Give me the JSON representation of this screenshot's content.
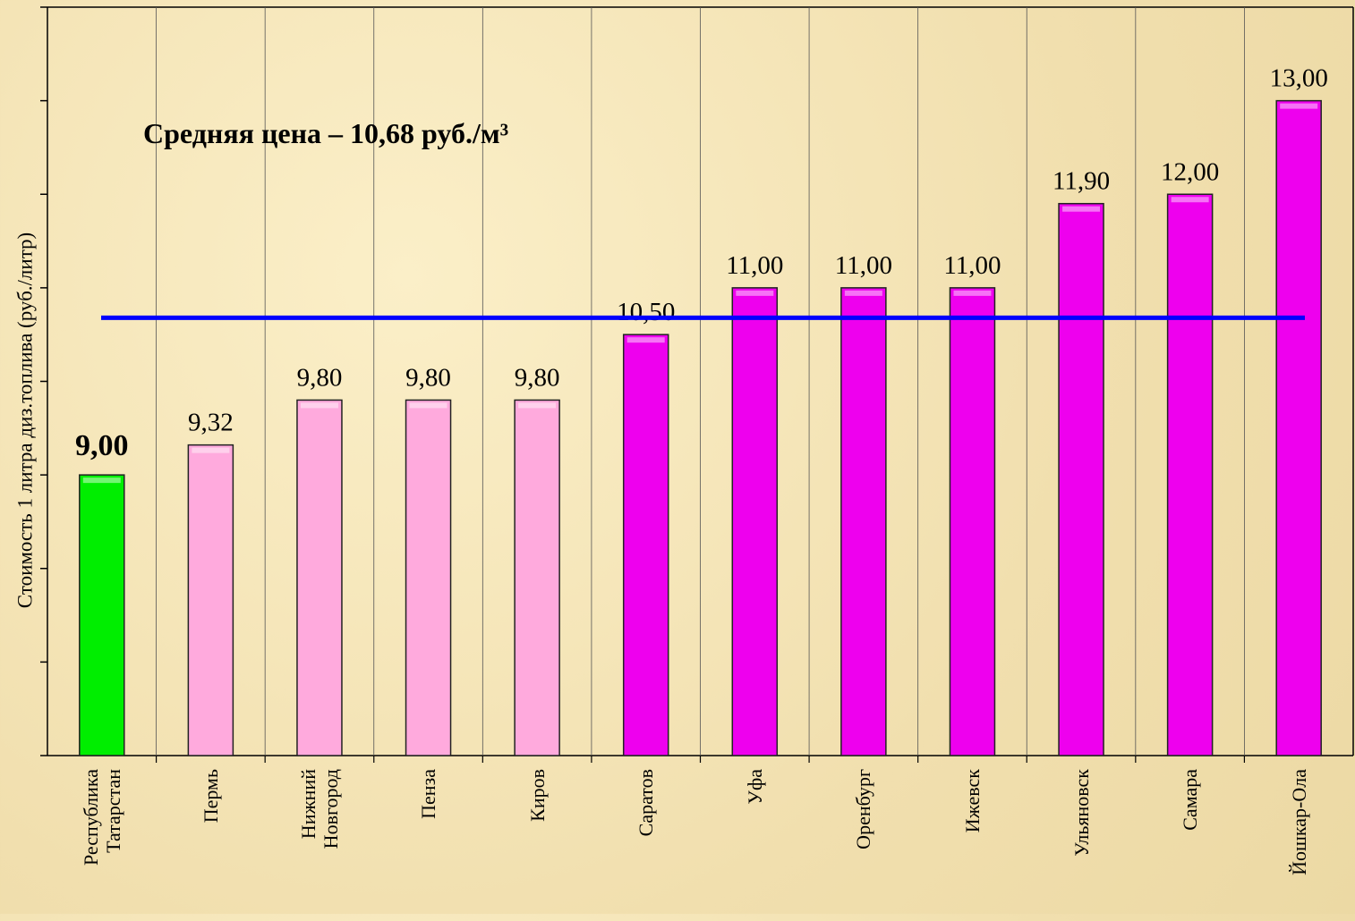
{
  "chart_data": {
    "type": "bar",
    "y_label": "Стоимость 1 литра диз.топлива  (руб./литр)",
    "annotation": "Средняя цена – 10,68 руб./м³",
    "average": 10.68,
    "average_color": "#0000ff",
    "categories": [
      "Республика Татарстан",
      "Пермь",
      "Нижний Новгород",
      "Пенза",
      "Киров",
      "Саратов",
      "Уфа",
      "Оренбург",
      "Ижевск",
      "Ульяновск",
      "Самара",
      "Йошкар-Ола"
    ],
    "values": [
      9.0,
      9.32,
      9.8,
      9.8,
      9.8,
      10.5,
      11.0,
      11.0,
      11.0,
      11.9,
      12.0,
      13.0
    ],
    "value_labels": [
      "9,00",
      "9,32",
      "9,80",
      "9,80",
      "9,80",
      "10,50",
      "11,00",
      "11,00",
      "11,00",
      "11,90",
      "12,00",
      "13,00"
    ],
    "colors": [
      "#00ee00",
      "#ffaadd",
      "#ffaadd",
      "#ffaadd",
      "#ffaadd",
      "#ee00ee",
      "#ee00ee",
      "#ee00ee",
      "#ee00ee",
      "#ee00ee",
      "#ee00ee",
      "#ee00ee"
    ],
    "ylim": [
      6,
      14
    ],
    "yticks": [
      6,
      7,
      8,
      9,
      10,
      11,
      12,
      13,
      14
    ],
    "grid": true
  }
}
